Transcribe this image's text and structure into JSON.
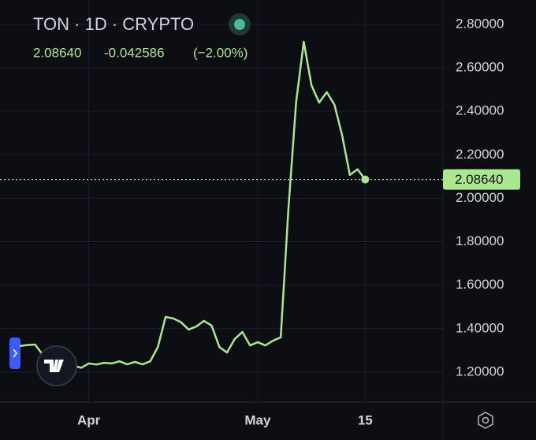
{
  "chart_data": {
    "type": "line",
    "title": "TON · 1D · CRYPTO",
    "last": "2.08640",
    "change": "-0.042586",
    "change_pct": "(−2.00%)",
    "last_price": {
      "value": 2.0864,
      "label": "2.08640"
    },
    "categories": [
      null,
      null,
      null,
      null,
      null,
      null,
      null,
      null,
      null,
      "Apr",
      null,
      null,
      null,
      null,
      null,
      null,
      null,
      null,
      null,
      null,
      null,
      null,
      null,
      null,
      null,
      null,
      null,
      null,
      null,
      null,
      null,
      "May",
      null,
      null,
      null,
      null,
      null,
      null,
      null,
      null,
      null,
      null,
      null,
      null,
      null,
      "15"
    ],
    "series": [
      {
        "color": "#a9e88f",
        "values": [
          1.32,
          1.325,
          1.327,
          1.28,
          1.25,
          1.24,
          1.23,
          1.23,
          1.22,
          1.24,
          1.235,
          1.243,
          1.24,
          1.25,
          1.236,
          1.247,
          1.236,
          1.25,
          1.316,
          1.454,
          1.447,
          1.43,
          1.396,
          1.41,
          1.436,
          1.414,
          1.316,
          1.29,
          1.352,
          1.385,
          1.323,
          1.338,
          1.323,
          1.345,
          1.36,
          1.951,
          2.44,
          2.72,
          2.52,
          2.44,
          2.488,
          2.43,
          2.289,
          2.107,
          2.133,
          2.0864
        ]
      }
    ],
    "ylim": [
      1.062,
      2.912
    ],
    "yticks": [
      {
        "value": 1.2,
        "label": "1.20000"
      },
      {
        "value": 1.4,
        "label": "1.40000"
      },
      {
        "value": 1.6,
        "label": "1.60000"
      },
      {
        "value": 1.8,
        "label": "1.80000"
      },
      {
        "value": 2.0,
        "label": "2.00000"
      },
      {
        "value": 2.2,
        "label": "2.20000"
      },
      {
        "value": 2.4,
        "label": "2.40000"
      },
      {
        "value": 2.6,
        "label": "2.60000"
      },
      {
        "value": 2.8,
        "label": "2.80000"
      }
    ],
    "grid": true
  }
}
